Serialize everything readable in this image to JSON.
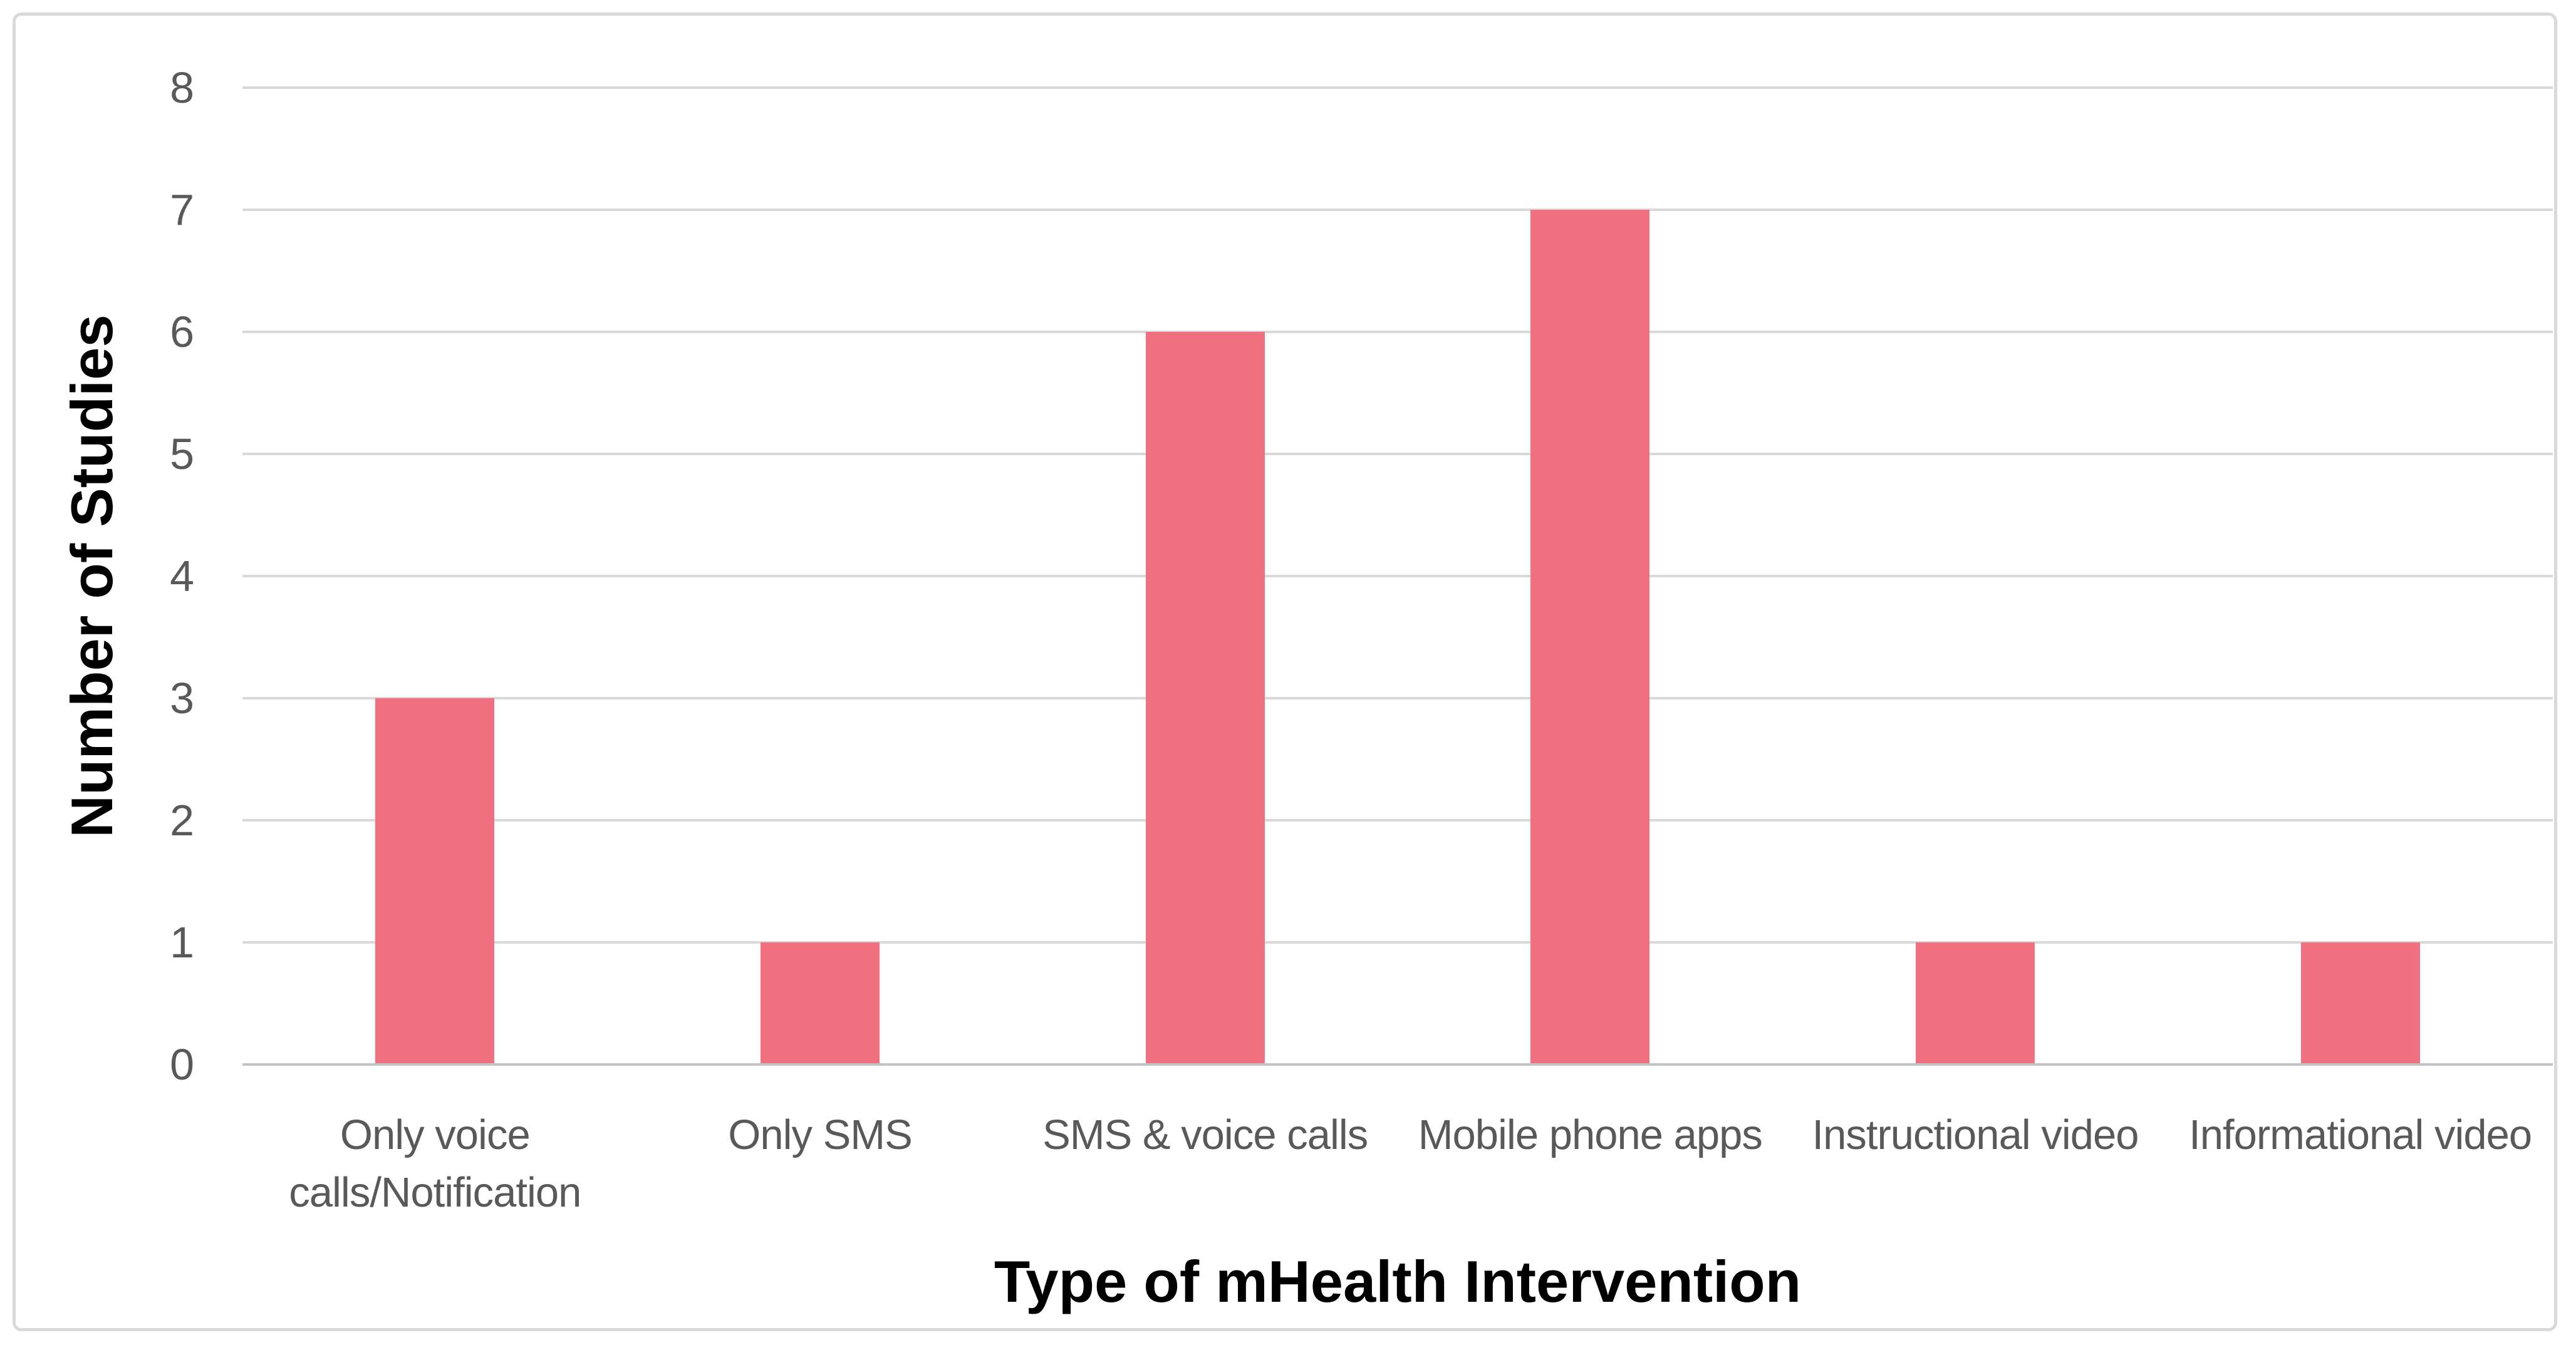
{
  "chart_data": {
    "type": "bar",
    "categories": [
      "Only voice calls/Notification",
      "Only SMS",
      "SMS & voice calls",
      "Mobile phone apps",
      "Instructional video",
      "Informational video"
    ],
    "values": [
      3,
      1,
      6,
      7,
      1,
      1
    ],
    "title": "",
    "xlabel": "Type of mHealth Intervention",
    "ylabel": "Number of Studies",
    "ylim": [
      0,
      8
    ],
    "yticks": [
      0,
      1,
      2,
      3,
      4,
      5,
      6,
      7,
      8
    ],
    "grid": true,
    "legend": false,
    "bar_color": "#f0707f",
    "gridline_color": "#d9d9d9",
    "axis_line_color": "#c3c3c3",
    "tick_label_color": "#595959",
    "category_label_color": "#595959",
    "axis_title_color": "#000000",
    "frame_border_color": "#d9d9d9"
  }
}
